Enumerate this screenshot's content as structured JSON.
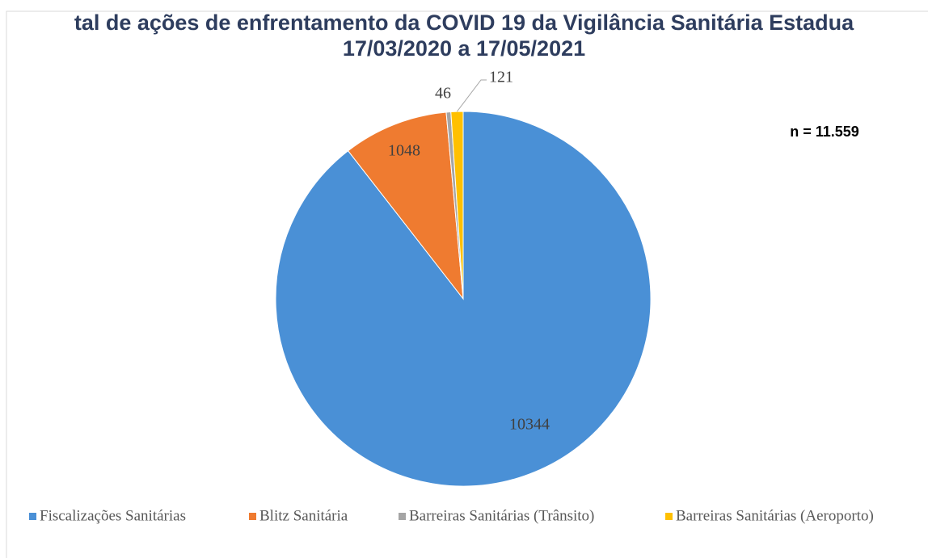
{
  "chart_data": {
    "type": "pie",
    "title": "tal de ações de enfrentamento da COVID 19 da Vigilância Sanitária Estadua",
    "subtitle": "17/03/2020 a 17/05/2021",
    "annotation": "n = 11.559",
    "categories": [
      "Fiscalizações Sanitárias",
      "Blitz Sanitária",
      "Barreiras Sanitárias (Trânsito)",
      "Barreiras Sanitárias (Aeroporto)"
    ],
    "values": [
      10344,
      1048,
      46,
      121
    ],
    "colors": [
      "#4a90d6",
      "#ef7b30",
      "#a5a5a5",
      "#ffc000"
    ],
    "legend": "bottom"
  }
}
